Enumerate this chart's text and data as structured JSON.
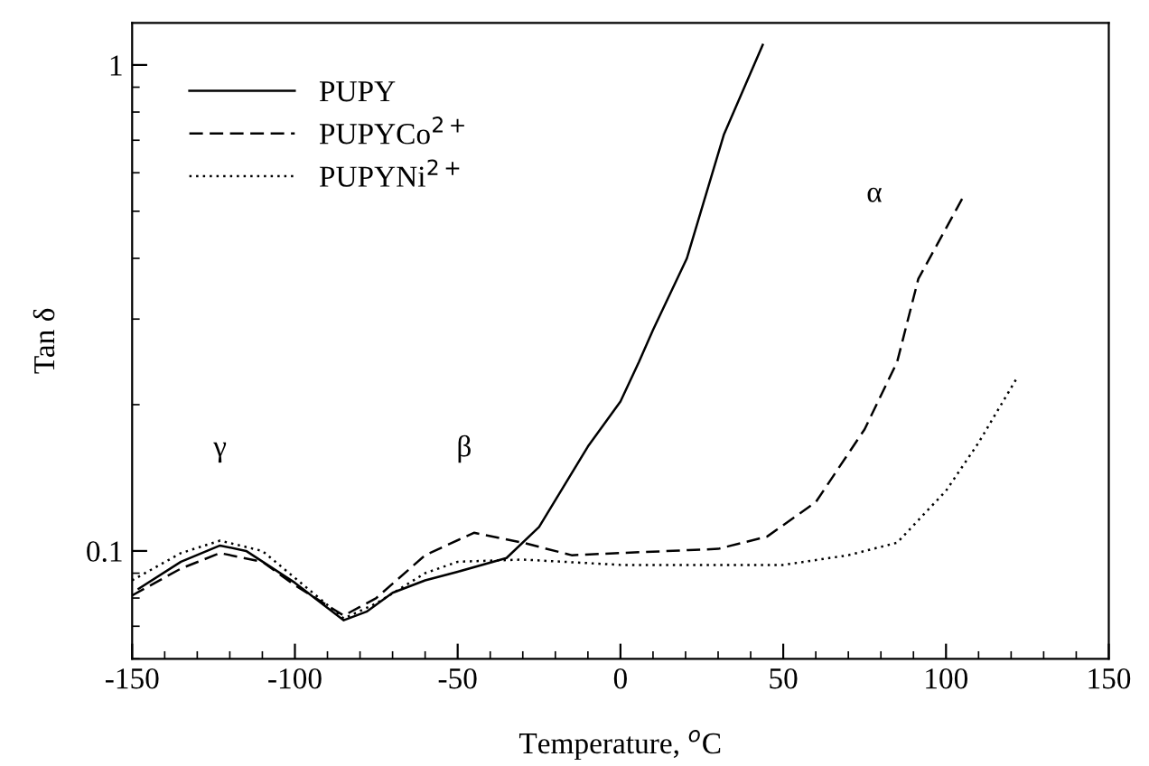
{
  "chart_data": {
    "type": "line",
    "xlabel": "Temperature, $^{o}$C",
    "ylabel": "Tan δ",
    "log": "y",
    "xlim": [
      -150,
      150
    ],
    "ylim": [
      0.06,
      1.22
    ],
    "xticks": [
      -150,
      -100,
      -50,
      0,
      50,
      100,
      150
    ],
    "yticks": [
      0.1,
      1
    ],
    "grid": false,
    "legend": "top left",
    "marker": "none",
    "annotations": [
      "γ",
      "β",
      "α"
    ],
    "series": [
      {
        "name": "PUPY",
        "color": "#000000",
        "line_style": "solid",
        "x": [
          -148,
          -135,
          -123,
          -115,
          -100,
          -85,
          -78,
          -70,
          -60,
          -50,
          -35,
          -25,
          -10,
          0,
          5.7,
          10,
          20.4,
          31.8,
          43.7
        ],
        "values": [
          0.0836,
          0.095,
          0.1026,
          0.1,
          0.086,
          0.072,
          0.075,
          0.082,
          0.087,
          0.0906,
          0.0967,
          0.112,
          0.164,
          0.203,
          0.245,
          0.285,
          0.4,
          0.72,
          1.1
        ]
      },
      {
        "name": "PUPYCo$^{2+}$",
        "color": "#000000",
        "line_style": "dashed",
        "x": [
          -150,
          -135,
          -123,
          -110,
          -100,
          -85,
          -75,
          -60,
          -45,
          -30,
          -15,
          0,
          30,
          45,
          60,
          75,
          85,
          91.5,
          105.6
        ],
        "values": [
          0.081,
          0.092,
          0.099,
          0.095,
          0.085,
          0.0736,
          0.08,
          0.098,
          0.109,
          0.104,
          0.098,
          0.099,
          0.101,
          0.107,
          0.126,
          0.178,
          0.245,
          0.363,
          0.54
        ]
      },
      {
        "name": "PUPYNi$^{2+}$",
        "color": "#000000",
        "line_style": "dotted",
        "x": [
          -150,
          -135,
          -123,
          -110,
          -100,
          -85,
          -75,
          -60,
          -50,
          -30,
          0,
          50,
          70,
          85,
          100,
          110,
          121.8
        ],
        "values": [
          0.087,
          0.099,
          0.105,
          0.1,
          0.088,
          0.0726,
          0.078,
          0.09,
          0.095,
          0.096,
          0.0936,
          0.0936,
          0.098,
          0.104,
          0.133,
          0.167,
          0.227
        ]
      }
    ]
  }
}
